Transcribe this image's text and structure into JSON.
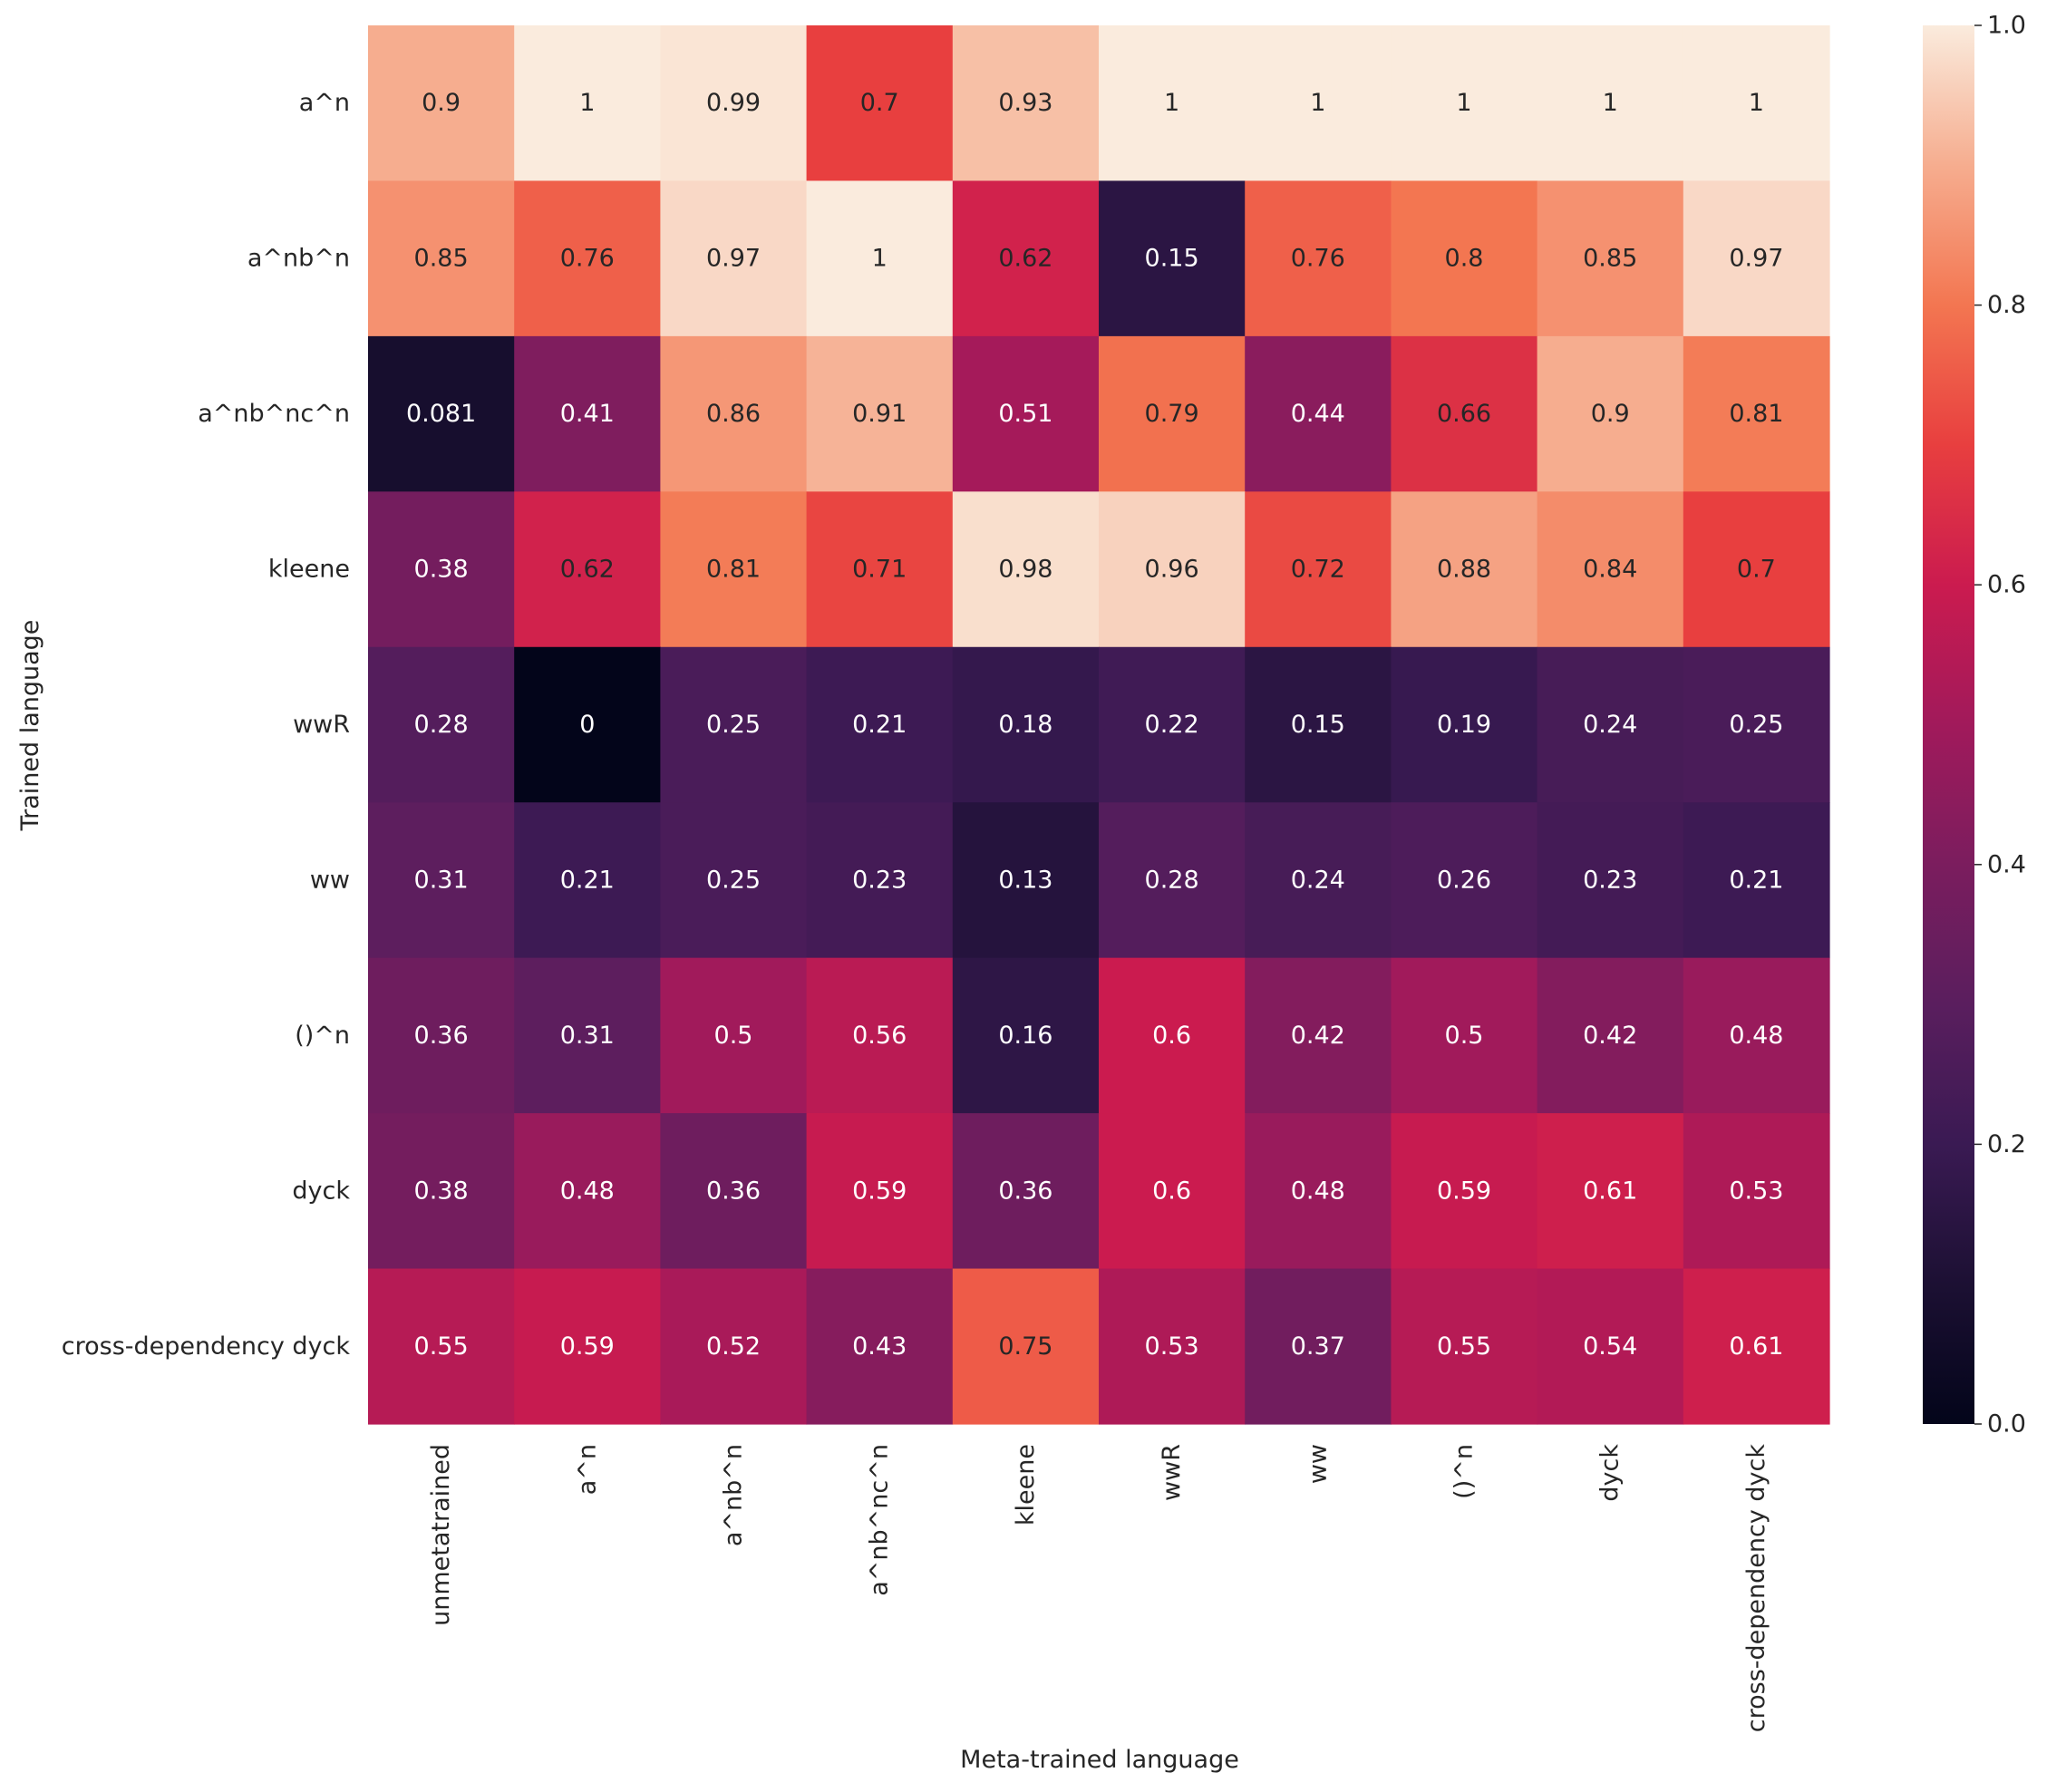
{
  "chart_data": {
    "type": "heatmap",
    "xlabel": "Meta-trained language",
    "ylabel": "Trained language",
    "x_categories": [
      "unmetatrained",
      "a^n",
      "a^nb^n",
      "a^nb^nc^n",
      "kleene",
      "wwR",
      "ww",
      "()^n",
      "dyck",
      "cross-dependency dyck"
    ],
    "y_categories": [
      "a^n",
      "a^nb^n",
      "a^nb^nc^n",
      "kleene",
      "wwR",
      "ww",
      "()^n",
      "dyck",
      "cross-dependency dyck"
    ],
    "values": [
      [
        0.9,
        1,
        0.99,
        0.7,
        0.93,
        1,
        1,
        1,
        1,
        1
      ],
      [
        0.85,
        0.76,
        0.97,
        1,
        0.62,
        0.15,
        0.76,
        0.8,
        0.85,
        0.97
      ],
      [
        0.081,
        0.41,
        0.86,
        0.91,
        0.51,
        0.79,
        0.44,
        0.66,
        0.9,
        0.81
      ],
      [
        0.38,
        0.62,
        0.81,
        0.71,
        0.98,
        0.96,
        0.72,
        0.88,
        0.84,
        0.7
      ],
      [
        0.28,
        0,
        0.25,
        0.21,
        0.18,
        0.22,
        0.15,
        0.19,
        0.24,
        0.25
      ],
      [
        0.31,
        0.21,
        0.25,
        0.23,
        0.13,
        0.28,
        0.24,
        0.26,
        0.23,
        0.21
      ],
      [
        0.36,
        0.31,
        0.5,
        0.56,
        0.16,
        0.6,
        0.42,
        0.5,
        0.42,
        0.48
      ],
      [
        0.38,
        0.48,
        0.36,
        0.59,
        0.36,
        0.6,
        0.48,
        0.59,
        0.61,
        0.53
      ],
      [
        0.55,
        0.59,
        0.52,
        0.43,
        0.75,
        0.53,
        0.37,
        0.55,
        0.54,
        0.61
      ]
    ],
    "colorbar": {
      "range": [
        0.0,
        1.0
      ],
      "ticks": [
        "0.0",
        "0.2",
        "0.4",
        "0.6",
        "0.8",
        "1.0"
      ],
      "colormap": "rocket"
    },
    "annotated": true,
    "grid": false
  }
}
